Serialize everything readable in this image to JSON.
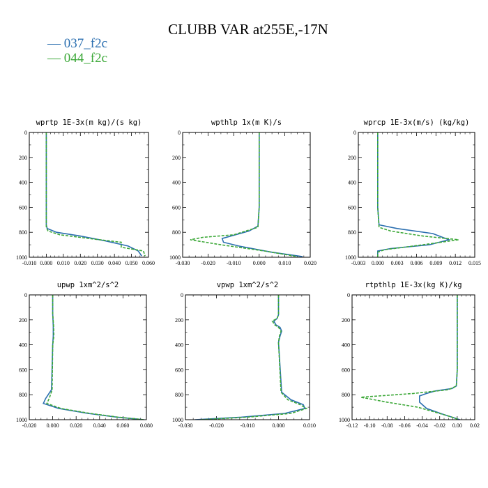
{
  "figure": {
    "title": "CLUBB VAR at255E,-17N",
    "legend": [
      {
        "label": "— 037_f2c",
        "color": "#2b6fb0"
      },
      {
        "label": "— 044_f2c",
        "color": "#3ca838"
      }
    ]
  },
  "chart_data": [
    {
      "type": "line",
      "title": "wprtp  1E-3x(m kg)/(s kg)",
      "xlim": [
        -0.01,
        0.06
      ],
      "ylim": [
        1000,
        0
      ],
      "xticks": [
        "-0.010",
        "0.000",
        "0.010",
        "0.020",
        "0.030",
        "0.040",
        "0.050",
        "0.060"
      ],
      "yticks": [
        "0",
        "200",
        "400",
        "600",
        "800",
        "1000"
      ],
      "series": [
        {
          "name": "037_f2c",
          "color": "#2b6fb0",
          "dash": "",
          "x": [
            0,
            0,
            0,
            0,
            0,
            0.0005,
            0.006,
            0.02,
            0.035,
            0.048,
            0.054,
            0.056
          ],
          "y": [
            0,
            200,
            400,
            600,
            740,
            770,
            800,
            830,
            870,
            910,
            950,
            990
          ]
        },
        {
          "name": "044_f2c",
          "color": "#3ca838",
          "dash": "4,2",
          "x": [
            0,
            0,
            0,
            0,
            0,
            0.001,
            0.008,
            0.025,
            0.044,
            0.044,
            0.057,
            0.058
          ],
          "y": [
            0,
            200,
            400,
            600,
            760,
            790,
            820,
            850,
            880,
            920,
            950,
            990
          ]
        }
      ]
    },
    {
      "type": "line",
      "title": "wpthlp  1x(m K)/s",
      "xlim": [
        -0.03,
        0.02
      ],
      "ylim": [
        1000,
        0
      ],
      "xticks": [
        "-0.030",
        "-0.020",
        "-0.010",
        "0.000",
        "0.010",
        "0.020"
      ],
      "yticks": [
        "0",
        "200",
        "400",
        "600",
        "800",
        "1000"
      ],
      "series": [
        {
          "name": "037_f2c",
          "color": "#2b6fb0",
          "dash": "",
          "x": [
            0,
            0,
            0,
            0,
            -0.0005,
            -0.004,
            -0.0145,
            -0.014,
            -0.008,
            0.005,
            0.017
          ],
          "y": [
            0,
            200,
            400,
            600,
            750,
            790,
            850,
            880,
            910,
            960,
            995
          ]
        },
        {
          "name": "044_f2c",
          "color": "#3ca838",
          "dash": "4,2",
          "x": [
            0,
            0,
            0,
            0,
            -0.0005,
            -0.01,
            -0.022,
            -0.027,
            -0.015,
            0.002,
            0.015
          ],
          "y": [
            0,
            200,
            400,
            600,
            760,
            820,
            840,
            860,
            900,
            950,
            995
          ]
        }
      ]
    },
    {
      "type": "line",
      "title": "wprcp  1E-3x(m/s) (kg/kg)",
      "xlim": [
        -0.003,
        0.015
      ],
      "ylim": [
        1000,
        0
      ],
      "xticks": [
        "-0.003",
        "0.000",
        "0.003",
        "0.006",
        "0.009",
        "0.012",
        "0.015"
      ],
      "yticks": [
        "0",
        "200",
        "400",
        "600",
        "800",
        "1000"
      ],
      "series": [
        {
          "name": "037_f2c",
          "color": "#2b6fb0",
          "dash": "",
          "x": [
            0,
            0,
            0,
            0,
            0.0002,
            0.003,
            0.0085,
            0.011,
            0.008,
            0.002,
            0,
            0
          ],
          "y": [
            0,
            200,
            400,
            600,
            740,
            770,
            810,
            860,
            900,
            930,
            950,
            1000
          ]
        },
        {
          "name": "044_f2c",
          "color": "#3ca838",
          "dash": "4,2",
          "x": [
            0,
            0,
            0,
            0,
            0.0002,
            0.002,
            0.007,
            0.0125,
            0.007,
            0.001,
            0,
            0
          ],
          "y": [
            0,
            200,
            400,
            600,
            760,
            790,
            830,
            860,
            900,
            940,
            960,
            1000
          ]
        }
      ]
    },
    {
      "type": "line",
      "title": "upwp  1xm^2/s^2",
      "xlim": [
        -0.02,
        0.08
      ],
      "ylim": [
        1000,
        0
      ],
      "xticks": [
        "-0.020",
        "0.000",
        "0.020",
        "0.040",
        "0.060",
        "0.080"
      ],
      "yticks": [
        "0",
        "200",
        "400",
        "600",
        "800",
        "1000"
      ],
      "series": [
        {
          "name": "037_f2c",
          "color": "#2b6fb0",
          "dash": "",
          "x": [
            0,
            0,
            0.0005,
            0.0005,
            0,
            -0.001,
            -0.006,
            -0.008,
            0.005,
            0.03,
            0.055,
            0.078
          ],
          "y": [
            0,
            150,
            250,
            330,
            400,
            760,
            830,
            870,
            910,
            950,
            980,
            1000
          ]
        },
        {
          "name": "044_f2c",
          "color": "#3ca838",
          "dash": "4,2",
          "x": [
            0,
            0,
            0.0008,
            0.001,
            0,
            -0.0005,
            -0.003,
            -0.005,
            0.007,
            0.032,
            0.056,
            0.078
          ],
          "y": [
            0,
            150,
            250,
            330,
            400,
            760,
            830,
            870,
            910,
            950,
            980,
            1000
          ]
        }
      ]
    },
    {
      "type": "line",
      "title": "vpwp  1xm^2/s^2",
      "xlim": [
        -0.03,
        0.01
      ],
      "ylim": [
        1000,
        0
      ],
      "xticks": [
        "-0.030",
        "-0.020",
        "-0.010",
        "0.000",
        "0.010"
      ],
      "yticks": [
        "0",
        "200",
        "400",
        "600",
        "800",
        "1000"
      ],
      "series": [
        {
          "name": "037_f2c",
          "color": "#2b6fb0",
          "dash": "",
          "x": [
            0,
            0,
            -0.0005,
            -0.0015,
            -0.0008,
            0.0005,
            0.001,
            0.0005,
            0,
            0.001,
            0.004,
            0.008,
            0.0085,
            0.002,
            -0.012,
            -0.027
          ],
          "y": [
            0,
            160,
            190,
            210,
            240,
            260,
            290,
            330,
            380,
            780,
            840,
            880,
            910,
            950,
            980,
            1000
          ]
        },
        {
          "name": "044_f2c",
          "color": "#3ca838",
          "dash": "4,2",
          "x": [
            0,
            0,
            -0.0005,
            -0.002,
            -0.0012,
            0,
            0.0008,
            0.0003,
            0,
            0.0008,
            0.003,
            0.007,
            0.009,
            0.004,
            -0.01,
            -0.025
          ],
          "y": [
            0,
            160,
            190,
            210,
            240,
            260,
            290,
            330,
            380,
            780,
            840,
            880,
            910,
            950,
            980,
            1000
          ]
        }
      ]
    },
    {
      "type": "line",
      "title": "rtpthlp  1E-3x(kg K)/kg",
      "xlim": [
        -0.12,
        0.02
      ],
      "ylim": [
        1000,
        0
      ],
      "xticks": [
        "-0.12",
        "-0.10",
        "-0.08",
        "-0.06",
        "-0.04",
        "-0.02",
        "0.00",
        "0.02"
      ],
      "yticks": [
        "0",
        "200",
        "400",
        "600",
        "800",
        "1000"
      ],
      "series": [
        {
          "name": "037_f2c",
          "color": "#2b6fb0",
          "dash": "",
          "x": [
            0,
            0,
            0,
            0,
            -0.001,
            -0.006,
            -0.025,
            -0.035,
            -0.043,
            -0.043,
            -0.035,
            -0.015,
            0.003
          ],
          "y": [
            0,
            200,
            400,
            600,
            730,
            750,
            770,
            790,
            810,
            860,
            910,
            960,
            1000
          ]
        },
        {
          "name": "044_f2c",
          "color": "#3ca838",
          "dash": "4,2",
          "x": [
            0,
            0,
            0,
            0,
            -0.001,
            -0.01,
            -0.05,
            -0.11,
            -0.08,
            -0.045,
            -0.025,
            -0.008,
            0.002
          ],
          "y": [
            0,
            200,
            400,
            600,
            730,
            760,
            790,
            820,
            860,
            900,
            940,
            975,
            1000
          ]
        }
      ]
    }
  ]
}
